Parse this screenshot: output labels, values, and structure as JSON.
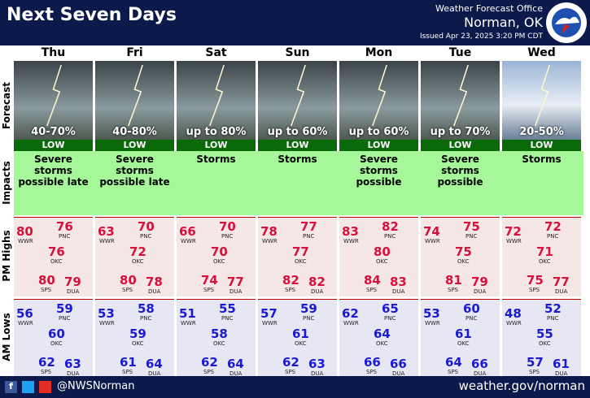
{
  "header": {
    "title": "Next Seven Days",
    "office": "Weather Forecast Office",
    "location": "Norman, OK",
    "issued": "Issued Apr 23, 2025 3:20 PM CDT"
  },
  "row_labels": [
    "Forecast",
    "Impacts",
    "PM Highs",
    "AM Lows"
  ],
  "stations": [
    "WWR",
    "PNC",
    "OKC",
    "SPS",
    "DUA"
  ],
  "days": [
    {
      "name": "Thu",
      "chance": "40-70%",
      "risk": "LOW",
      "impact": "Severe storms possible late",
      "highs": [
        80,
        76,
        76,
        80,
        79
      ],
      "lows": [
        56,
        59,
        60,
        62,
        63
      ]
    },
    {
      "name": "Fri",
      "chance": "40-80%",
      "risk": "LOW",
      "impact": "Severe storms possible late",
      "highs": [
        63,
        70,
        72,
        80,
        78
      ],
      "lows": [
        53,
        58,
        59,
        61,
        64
      ]
    },
    {
      "name": "Sat",
      "chance": "up to 80%",
      "risk": "LOW",
      "impact": "Storms",
      "highs": [
        66,
        70,
        70,
        74,
        77
      ],
      "lows": [
        51,
        55,
        58,
        62,
        64
      ]
    },
    {
      "name": "Sun",
      "chance": "up to 60%",
      "risk": "LOW",
      "impact": "Storms",
      "highs": [
        78,
        77,
        77,
        82,
        82
      ],
      "lows": [
        57,
        59,
        61,
        62,
        63
      ]
    },
    {
      "name": "Mon",
      "chance": "up to 60%",
      "risk": "LOW",
      "impact": "Severe storms possible",
      "highs": [
        83,
        82,
        80,
        84,
        83
      ],
      "lows": [
        62,
        65,
        64,
        66,
        66
      ]
    },
    {
      "name": "Tue",
      "chance": "up to 70%",
      "risk": "LOW",
      "impact": "Severe storms possible",
      "highs": [
        74,
        75,
        75,
        81,
        79
      ],
      "lows": [
        53,
        60,
        61,
        64,
        66
      ]
    },
    {
      "name": "Wed",
      "chance": "20-50%",
      "risk": "LOW",
      "impact": "Storms",
      "highs": [
        72,
        72,
        71,
        75,
        77
      ],
      "lows": [
        48,
        52,
        55,
        57,
        61
      ]
    }
  ],
  "footer": {
    "handle": "@NWSNorman",
    "url": "weather.gov/norman"
  }
}
